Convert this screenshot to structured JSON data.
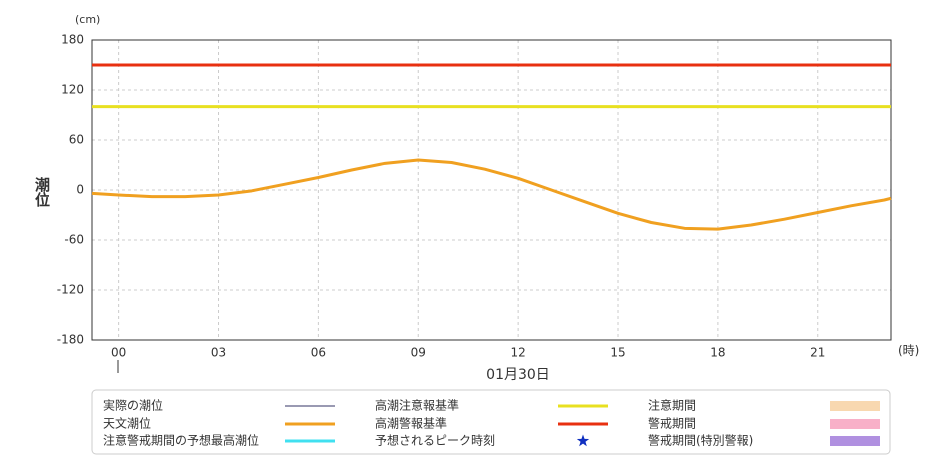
{
  "chart_data": {
    "type": "line",
    "y_unit": "(cm)",
    "x_unit": "(時)",
    "ylabel": "潮位",
    "date_label": "01月30日",
    "x": [
      -0.8,
      0,
      1,
      2,
      3,
      4,
      5,
      6,
      7,
      8,
      9,
      10,
      11,
      12,
      13,
      14,
      15,
      16,
      17,
      18,
      19,
      20,
      21,
      22,
      23,
      23.2
    ],
    "series": [
      {
        "name": "天文潮位",
        "color": "#f0a020",
        "values": [
          -4,
          -6,
          -8,
          -8,
          -6,
          -1,
          7,
          15,
          24,
          32,
          36,
          33,
          25,
          14,
          0,
          -14,
          -28,
          -39,
          -46,
          -47,
          -42,
          -35,
          -27,
          -19,
          -12,
          -10
        ]
      }
    ],
    "reference_lines": [
      {
        "name": "高潮注意報基準",
        "color": "#e8e020",
        "value": 100
      },
      {
        "name": "高潮警報基準",
        "color": "#e83010",
        "value": 150
      }
    ],
    "legend_extra": [
      {
        "name": "実際の潮位",
        "color": "#333366",
        "kind": "thin-line"
      },
      {
        "name": "注意期間",
        "color": "#f8d8b0",
        "kind": "box"
      },
      {
        "name": "警戒期間",
        "color": "#f8b0c8",
        "kind": "box"
      },
      {
        "name": "注意警戒期間の予想最高潮位",
        "color": "#40e0f0",
        "kind": "line"
      },
      {
        "name": "予想されるピーク時刻",
        "color": "#1030c0",
        "kind": "star"
      },
      {
        "name": "警戒期間(特別警報)",
        "color": "#b090e0",
        "kind": "box"
      }
    ],
    "xlim": [
      -0.8,
      23.2
    ],
    "xticks": [
      {
        "value": 0,
        "label": "00"
      },
      {
        "value": 3,
        "label": "03"
      },
      {
        "value": 6,
        "label": "06"
      },
      {
        "value": 9,
        "label": "09"
      },
      {
        "value": 12,
        "label": "12"
      },
      {
        "value": 15,
        "label": "15"
      },
      {
        "value": 18,
        "label": "18"
      },
      {
        "value": 21,
        "label": "21"
      }
    ],
    "ylim": [
      -180,
      180
    ],
    "yticks": [
      180,
      120,
      60,
      0,
      -60,
      -120,
      -180
    ],
    "grid": true
  }
}
